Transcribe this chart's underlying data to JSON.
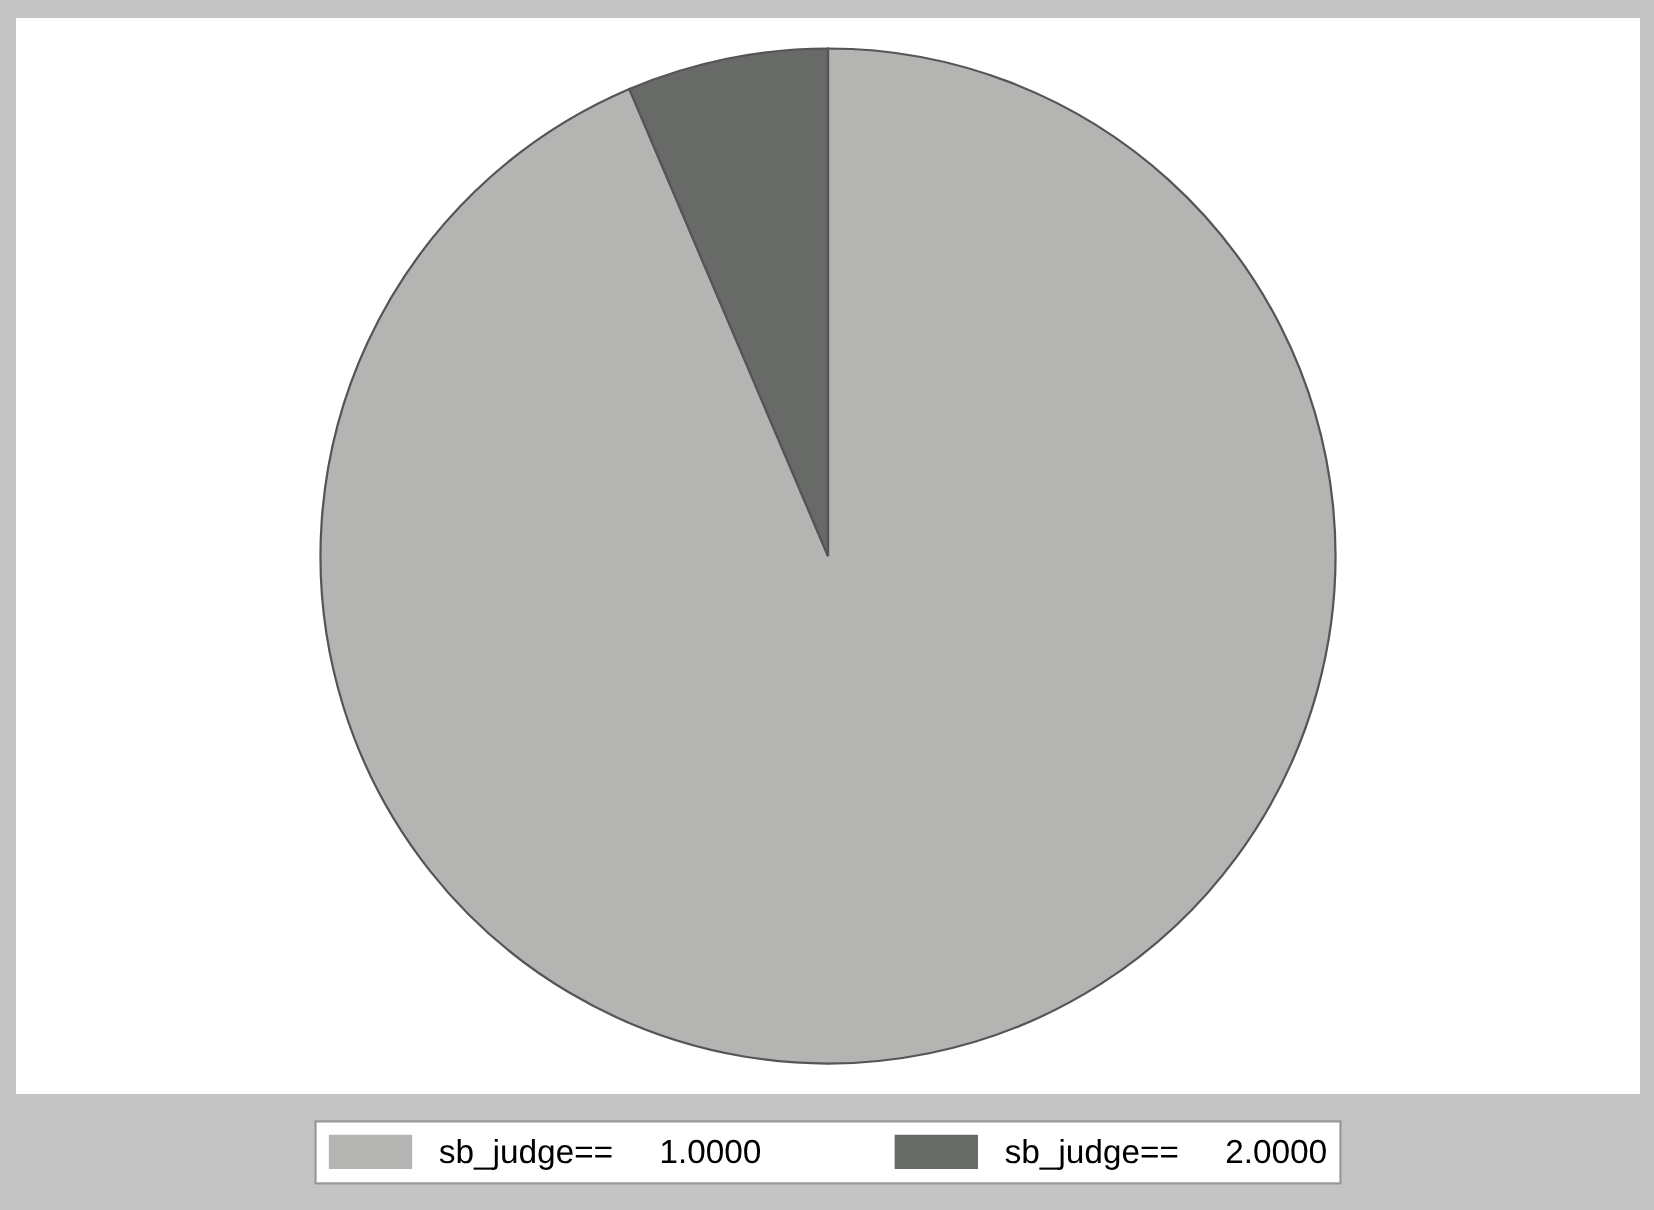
{
  "chart_data": {
    "type": "pie",
    "categories": [
      "sb_judge==     1.0000",
      "sb_judge==     2.0000"
    ],
    "values": [
      93.6,
      6.4
    ],
    "colors": [
      "#b4b5b3",
      "#676a67"
    ],
    "legend": "bottom"
  }
}
